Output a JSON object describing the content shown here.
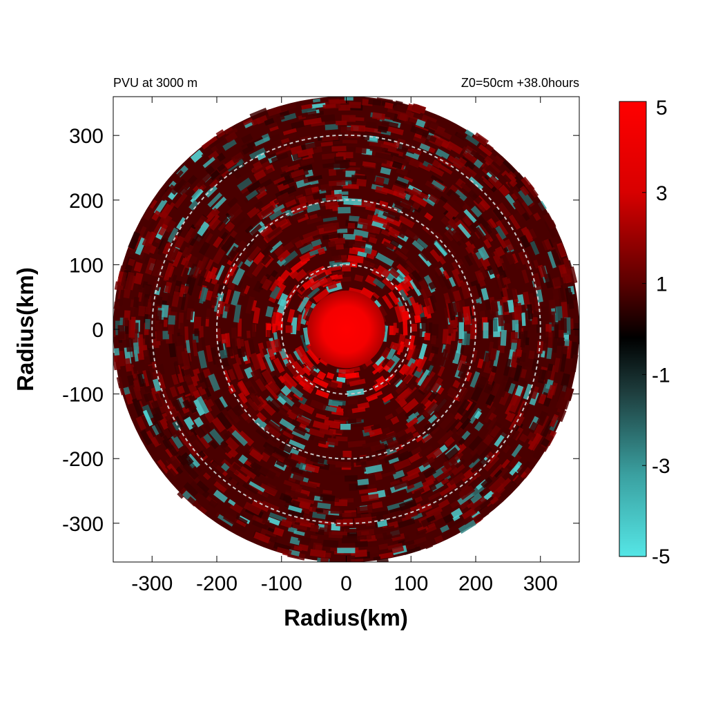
{
  "chart_data": {
    "type": "heatmap",
    "title_left": "PVU at  3000 m",
    "title_right": "Z0=50cm  +38.0hours",
    "xlabel": "Radius(km)",
    "ylabel": "Radius(km)",
    "xlim": [
      -360,
      360
    ],
    "ylim": [
      -360,
      360
    ],
    "xticks": [
      -300,
      -200,
      -100,
      0,
      100,
      200,
      300
    ],
    "yticks": [
      300,
      200,
      100,
      0,
      -100,
      -200,
      -300
    ],
    "xtick_labels": [
      "-300",
      "-200",
      "-100",
      "0",
      "100",
      "200",
      "300"
    ],
    "ytick_labels": [
      "300",
      "200",
      "100",
      "0",
      "-100",
      "-200",
      "-300"
    ],
    "domain_radius_km": 360,
    "range_rings_km": [
      100,
      200,
      300
    ],
    "colorbar": {
      "min": -5,
      "max": 5,
      "ticks": [
        5,
        3,
        1,
        -1,
        -3,
        -5
      ],
      "tick_labels": [
        "5",
        "3",
        "1",
        "-1",
        "-3",
        "-5"
      ],
      "colors": {
        "max": "#ff0000",
        "mid": "#000000",
        "min": "#55e6e6"
      }
    },
    "field_description_values": {
      "eye_core_radius_km": 60,
      "eye_core_value": 5,
      "background_value": 1.2
    }
  }
}
